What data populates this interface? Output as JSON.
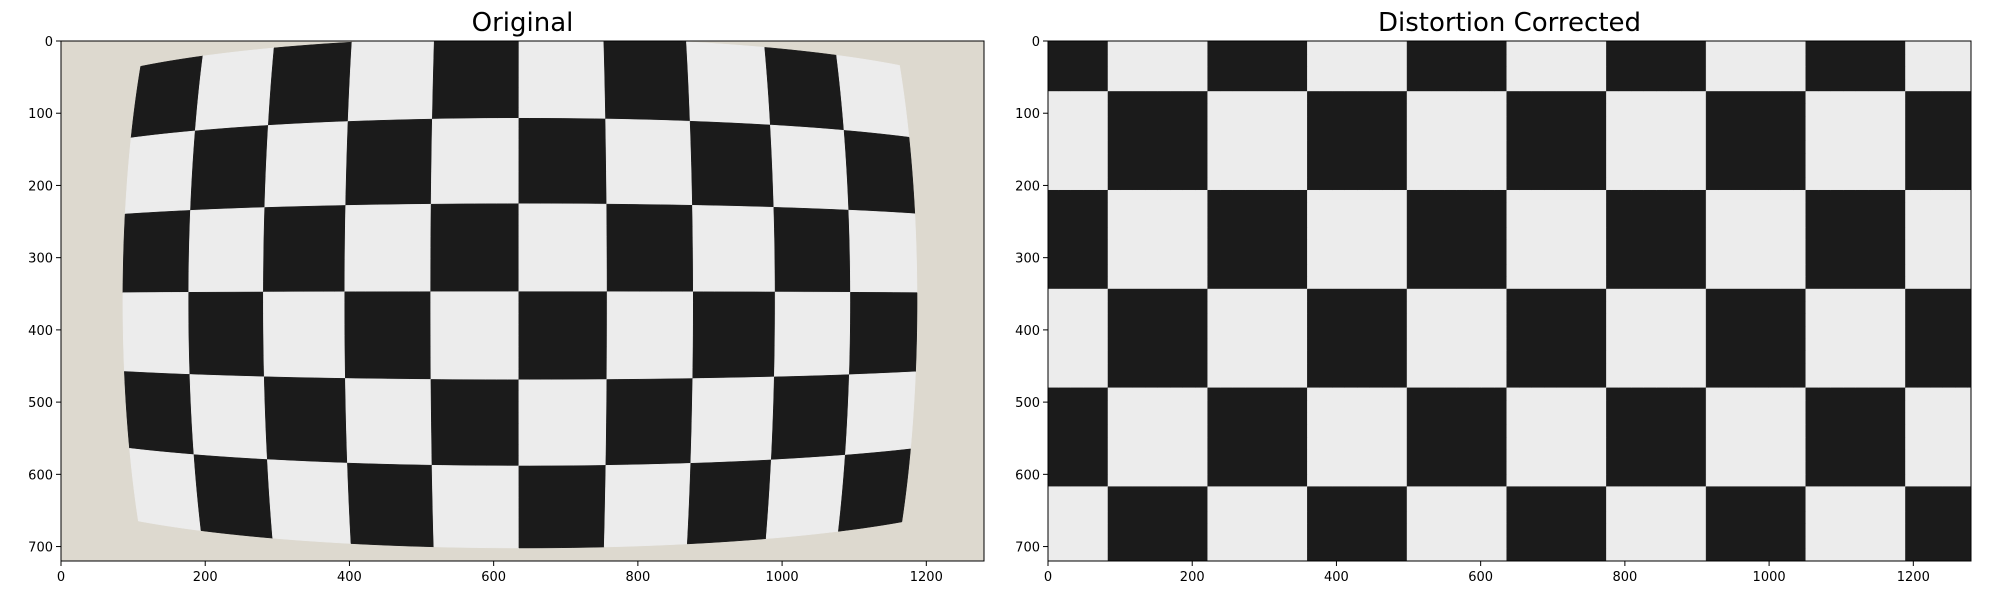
{
  "chart_data": [
    {
      "type": "image",
      "title": "Original",
      "xlim": [
        0,
        1280
      ],
      "ylim": [
        720,
        0
      ],
      "xticks": [
        0,
        200,
        400,
        600,
        800,
        1000,
        1200
      ],
      "yticks": [
        0,
        100,
        200,
        300,
        400,
        500,
        600,
        700
      ]
    },
    {
      "type": "image",
      "title": "Distortion Corrected",
      "xlim": [
        0,
        1280
      ],
      "ylim": [
        720,
        0
      ],
      "xticks": [
        0,
        200,
        400,
        600,
        800,
        1000,
        1200
      ],
      "yticks": [
        0,
        100,
        200,
        300,
        400,
        500,
        600,
        700
      ]
    }
  ]
}
